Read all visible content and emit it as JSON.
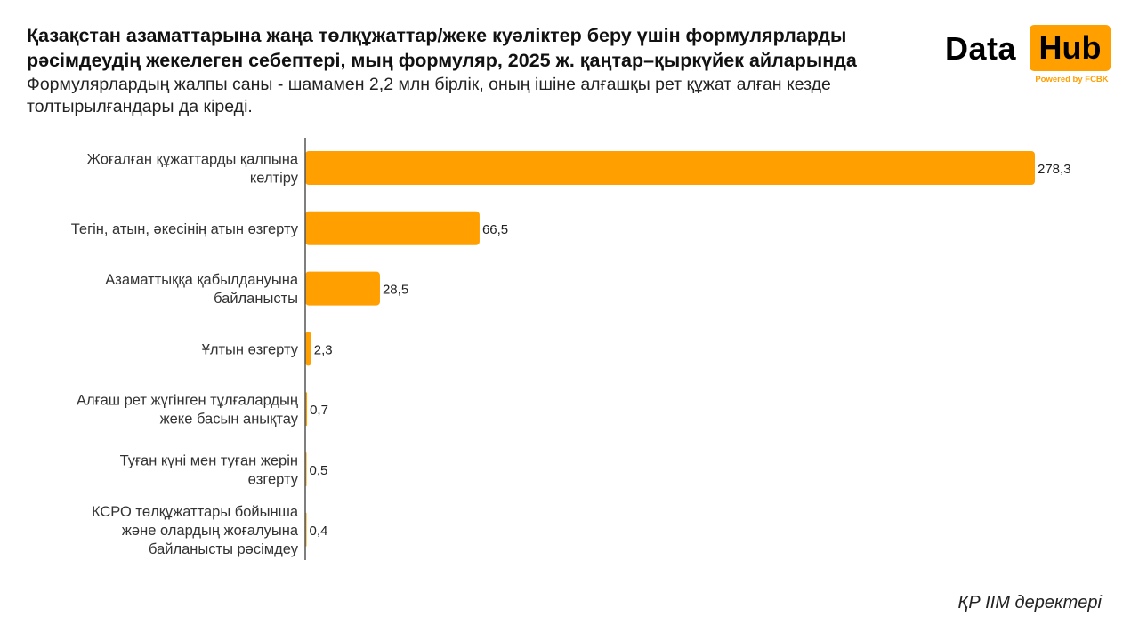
{
  "header": {
    "title": "Қазақстан азаматтарына жаңа төлқұжаттар/жеке куәліктер беру үшін формулярларды рәсімдеудің жекелеген себептері, мың формуляр, 2025 ж. қаңтар–қыркүйек айларында",
    "subtitle": "Формулярлардың жалпы саны - шамамен 2,2 млн бірлік, оның ішіне алғашқы рет құжат алған кезде толтырылғандары да кіреді."
  },
  "logo": {
    "word1": "Data",
    "word2": "Hub",
    "tagline": "Powered by FCBK"
  },
  "footer": {
    "source": "ҚР ІІМ деректері"
  },
  "colors": {
    "bar": "#ff9f00",
    "axis": "#555555"
  },
  "chart_data": {
    "type": "bar",
    "orientation": "horizontal",
    "categories": [
      [
        "Жоғалған құжаттарды қалпына",
        "келтіру"
      ],
      [
        "Тегін, атын, әкесінің атын өзгерту"
      ],
      [
        "Азаматтыққа қабылдануына",
        "байланысты"
      ],
      [
        "Ұлтын өзгерту"
      ],
      [
        "Алғаш рет жүгінген тұлғалардың",
        "жеке басын анықтау"
      ],
      [
        "Туған күні мен туған жерін",
        "өзгерту"
      ],
      [
        "КСРО төлқұжаттары бойынша",
        "және олардың жоғалуына",
        "байланысты рәсімдеу"
      ]
    ],
    "values": [
      278.3,
      66.5,
      28.5,
      2.3,
      0.7,
      0.5,
      0.4
    ],
    "value_labels": [
      "278,3",
      "66,5",
      "28,5",
      "2,3",
      "0,7",
      "0,5",
      "0,4"
    ],
    "xlim": [
      0,
      278.3
    ],
    "grid": false,
    "legend": "none"
  }
}
